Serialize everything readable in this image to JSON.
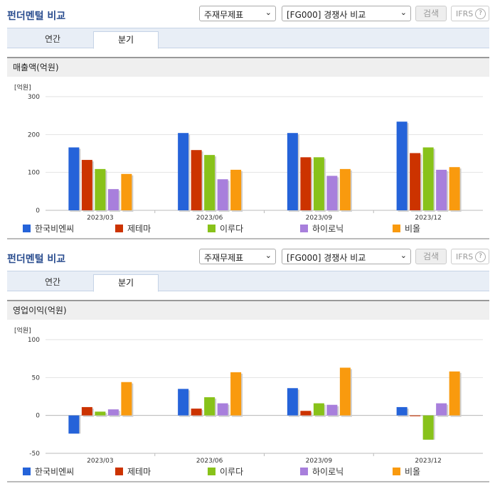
{
  "panel_title": "펀더멘털 비교",
  "select_statement": "주재무제표",
  "select_compare": "[FG000] 경쟁사 비교",
  "search_label": "검색",
  "ifrs_label": "IFRS",
  "ifrs_help": "?",
  "tabs": [
    {
      "label": "연간"
    },
    {
      "label": "분기"
    }
  ],
  "active_tab": "분기",
  "panels": [
    {
      "subtitle": "매출액(억원)",
      "unit": "[억원]"
    },
    {
      "subtitle": "영업이익(억원)",
      "unit": "[억원]"
    }
  ],
  "colors": [
    "#2563d9",
    "#cc3300",
    "#88c21a",
    "#a87fdc",
    "#f99a0e"
  ],
  "chart_data": [
    {
      "type": "bar",
      "title": "매출액(억원)",
      "ylabel": "[억원]",
      "categories": [
        "2023/03",
        "2023/06",
        "2023/09",
        "2023/12"
      ],
      "ylim": [
        0,
        300
      ],
      "yticks": [
        0,
        100,
        200,
        300
      ],
      "series": [
        {
          "name": "한국비엔씨",
          "values": [
            166,
            204,
            204,
            234
          ]
        },
        {
          "name": "제테마",
          "values": [
            133,
            159,
            140,
            151
          ]
        },
        {
          "name": "이루다",
          "values": [
            109,
            146,
            140,
            166
          ]
        },
        {
          "name": "하이로닉",
          "values": [
            56,
            82,
            91,
            107
          ]
        },
        {
          "name": "비올",
          "values": [
            96,
            107,
            109,
            114
          ]
        }
      ]
    },
    {
      "type": "bar",
      "title": "영업이익(억원)",
      "ylabel": "[억원]",
      "categories": [
        "2023/03",
        "2023/06",
        "2023/09",
        "2023/12"
      ],
      "ylim": [
        -50,
        100
      ],
      "yticks": [
        -50,
        0,
        50,
        100
      ],
      "series": [
        {
          "name": "한국비엔씨",
          "values": [
            -24,
            35,
            36,
            11
          ]
        },
        {
          "name": "제테마",
          "values": [
            11,
            9,
            6,
            -1
          ]
        },
        {
          "name": "이루다",
          "values": [
            5,
            24,
            16,
            -32
          ]
        },
        {
          "name": "하이로닉",
          "values": [
            8,
            16,
            14,
            16
          ]
        },
        {
          "name": "비올",
          "values": [
            44,
            57,
            63,
            58
          ]
        }
      ]
    }
  ]
}
